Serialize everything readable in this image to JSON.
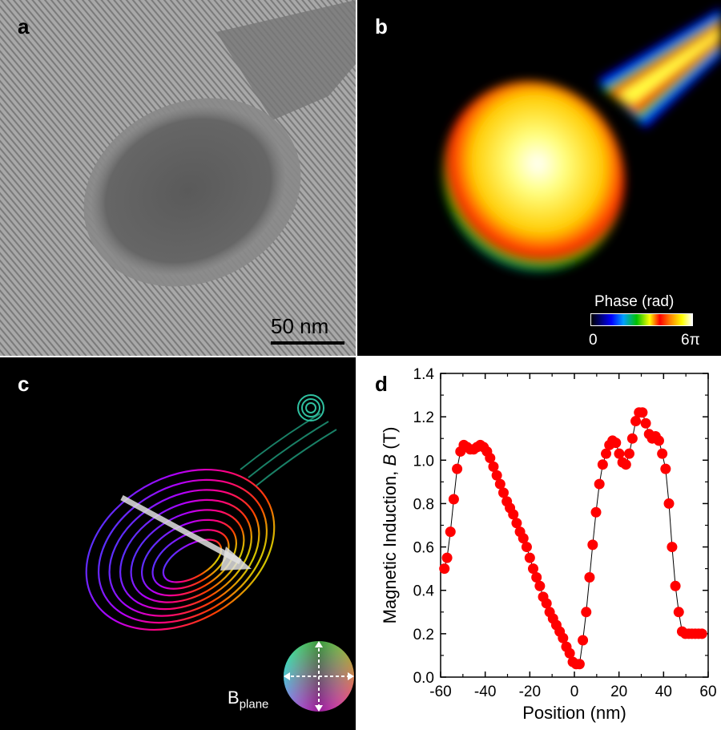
{
  "panels": {
    "a": {
      "label": "a",
      "scale_bar": "50 nm"
    },
    "b": {
      "label": "b",
      "colorbar": {
        "title": "Phase (rad)",
        "min": "0",
        "max": "6π"
      }
    },
    "c": {
      "label": "c",
      "legend_label": "B",
      "legend_subscript": "plane"
    },
    "d": {
      "label": "d"
    }
  },
  "colors": {
    "data": "#ff0000",
    "line": "#000000"
  },
  "chart_data": {
    "type": "scatter",
    "title": "",
    "xlabel": "Position (nm)",
    "ylabel_prefix": "Magnetic Induction, ",
    "ylabel_italic": "B",
    "ylabel_suffix": " (T)",
    "xlim": [
      -60,
      60
    ],
    "ylim": [
      0.0,
      1.4
    ],
    "xticks": [
      "-60",
      "-40",
      "-20",
      "0",
      "20",
      "40",
      "60"
    ],
    "yticks": [
      "0.0",
      "0.2",
      "0.4",
      "0.6",
      "0.8",
      "1.0",
      "1.2",
      "1.4"
    ],
    "x": [
      -58.3,
      -57.1,
      -55.6,
      -54.1,
      -52.6,
      -51.1,
      -49.6,
      -48.1,
      -46.7,
      -45.2,
      -43.7,
      -42.2,
      -40.7,
      -39.2,
      -37.8,
      -36.3,
      -34.8,
      -33.3,
      -31.8,
      -30.3,
      -28.9,
      -27.4,
      -25.9,
      -24.4,
      -22.9,
      -21.4,
      -20.0,
      -18.5,
      -17.0,
      -15.5,
      -14.0,
      -12.5,
      -11.1,
      -9.6,
      -8.1,
      -6.6,
      -5.1,
      -3.6,
      -2.1,
      -0.7,
      0.8,
      2.3,
      3.8,
      5.3,
      6.8,
      8.2,
      9.7,
      11.2,
      12.7,
      14.2,
      15.7,
      17.1,
      18.6,
      20.1,
      21.6,
      23.1,
      24.6,
      26.0,
      27.5,
      29.0,
      30.5,
      32.0,
      33.5,
      34.9,
      36.4,
      37.9,
      39.4,
      40.9,
      42.4,
      43.8,
      45.3,
      46.8,
      48.3,
      49.8,
      51.3,
      52.7,
      54.2,
      55.7,
      57.2
    ],
    "y": [
      0.5,
      0.55,
      0.67,
      0.82,
      0.96,
      1.04,
      1.07,
      1.06,
      1.05,
      1.05,
      1.06,
      1.07,
      1.06,
      1.04,
      1.01,
      0.97,
      0.93,
      0.89,
      0.85,
      0.81,
      0.78,
      0.75,
      0.71,
      0.67,
      0.64,
      0.6,
      0.55,
      0.5,
      0.46,
      0.42,
      0.37,
      0.34,
      0.3,
      0.27,
      0.24,
      0.21,
      0.18,
      0.14,
      0.11,
      0.07,
      0.06,
      0.06,
      0.17,
      0.3,
      0.46,
      0.61,
      0.76,
      0.89,
      0.98,
      1.03,
      1.07,
      1.09,
      1.08,
      1.03,
      0.99,
      0.98,
      1.03,
      1.1,
      1.18,
      1.22,
      1.22,
      1.17,
      1.12,
      1.1,
      1.11,
      1.09,
      1.03,
      0.96,
      0.8,
      0.6,
      0.42,
      0.3,
      0.21,
      0.2,
      0.2,
      0.2,
      0.2,
      0.2,
      0.2
    ]
  }
}
